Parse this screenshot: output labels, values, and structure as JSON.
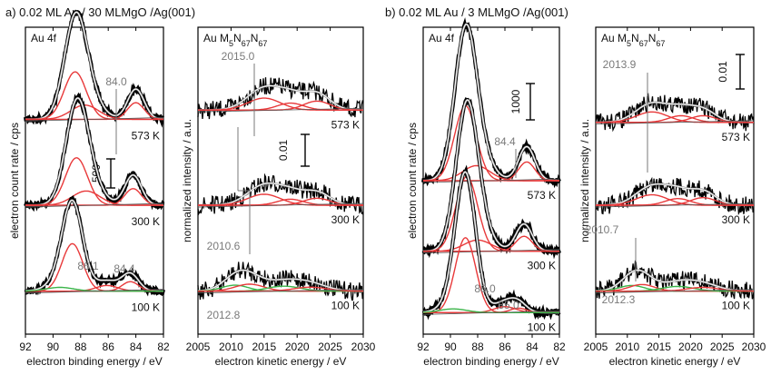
{
  "figure": {
    "left_title": "a) 0.02 ML Au / 30 MLMgO /Ag(001)",
    "right_title": "b) 0.02 ML Au / 3 MLMgO /Ag(001)"
  },
  "colors": {
    "raw": "#000000",
    "envelope": "#ffffff",
    "fit": "#8c8c8c",
    "component_red": "#e8393a",
    "component_green": "#3bb54a",
    "background_line": "#555555",
    "annotation": "#7a7a7a"
  },
  "chart_data": [
    {
      "id": "a-4f",
      "type": "line",
      "panel_label": "Au 4f",
      "xlabel": "electron binding energy / eV",
      "ylabel": "electron count rate / cps",
      "xlim": [
        92,
        82
      ],
      "xticks": [
        92,
        90,
        88,
        86,
        84,
        82
      ],
      "scale_bar": "500",
      "spectra": [
        {
          "temperature": "573 K",
          "peaks": [
            {
              "center": 88.4,
              "height": 1.0,
              "width": 0.8,
              "color": "red"
            },
            {
              "center": 84.0,
              "height": 0.35,
              "width": 0.6,
              "color": "red"
            },
            {
              "center": 87.7,
              "height": 0.3,
              "width": 1.0,
              "color": "red"
            }
          ]
        },
        {
          "temperature": "300 K",
          "peaks": [
            {
              "center": 88.3,
              "height": 1.0,
              "width": 0.8,
              "color": "red"
            },
            {
              "center": 84.2,
              "height": 0.35,
              "width": 0.6,
              "color": "red"
            },
            {
              "center": 87.6,
              "height": 0.3,
              "width": 1.0,
              "color": "red"
            }
          ]
        },
        {
          "temperature": "100 K",
          "peaks": [
            {
              "center": 88.6,
              "height": 1.0,
              "width": 0.75,
              "color": "red"
            },
            {
              "center": 84.4,
              "height": 0.2,
              "width": 0.6,
              "color": "red"
            },
            {
              "center": 86.1,
              "height": 0.12,
              "width": 0.8,
              "color": "red"
            },
            {
              "center": 89.5,
              "height": 0.08,
              "width": 1.0,
              "color": "green"
            }
          ]
        }
      ],
      "annotations": [
        "84.0",
        "86.1",
        "84.4"
      ]
    },
    {
      "id": "a-mnn",
      "type": "line",
      "panel_label": "Au M5N67N67",
      "xlabel": "electron kinetic energy / eV",
      "ylabel": "normalized intensity / a.u.",
      "xlim": [
        2005,
        2030
      ],
      "xticks": [
        2005,
        2010,
        2015,
        2020,
        2025,
        2030
      ],
      "scale_bar": "0.01",
      "spectra": [
        {
          "temperature": "573 K",
          "peaks": [
            {
              "center": 2015.0,
              "height": 0.6,
              "width": 2.5,
              "color": "red"
            },
            {
              "center": 2019.0,
              "height": 0.35,
              "width": 2.0,
              "color": "red"
            },
            {
              "center": 2023.0,
              "height": 0.45,
              "width": 2.0,
              "color": "red"
            }
          ]
        },
        {
          "temperature": "300 K",
          "peaks": [
            {
              "center": 2015.0,
              "height": 0.55,
              "width": 2.5,
              "color": "red"
            },
            {
              "center": 2019.0,
              "height": 0.3,
              "width": 2.0,
              "color": "red"
            },
            {
              "center": 2023.0,
              "height": 0.35,
              "width": 2.0,
              "color": "red"
            }
          ]
        },
        {
          "temperature": "100 K",
          "peaks": [
            {
              "center": 2010.6,
              "height": 0.3,
              "width": 2.0,
              "color": "green"
            },
            {
              "center": 2012.8,
              "height": 0.35,
              "width": 2.2,
              "color": "red"
            },
            {
              "center": 2018.0,
              "height": 0.25,
              "width": 2.5,
              "color": "green"
            },
            {
              "center": 2022.0,
              "height": 0.2,
              "width": 2.5,
              "color": "red"
            }
          ]
        }
      ],
      "annotations": [
        "2015.0",
        "2010.6",
        "2012.8"
      ]
    },
    {
      "id": "b-4f",
      "type": "line",
      "panel_label": "Au 4f",
      "xlabel": "electron binding energy / eV",
      "ylabel": "electron count rate / cps",
      "xlim": [
        92,
        82
      ],
      "xticks": [
        92,
        90,
        88,
        86,
        84,
        82
      ],
      "scale_bar": "1000",
      "spectra": [
        {
          "temperature": "573 K",
          "peaks": [
            {
              "center": 88.9,
              "height": 1.0,
              "width": 0.8,
              "color": "red"
            },
            {
              "center": 84.4,
              "height": 0.25,
              "width": 0.6,
              "color": "red"
            },
            {
              "center": 88.1,
              "height": 0.2,
              "width": 1.0,
              "color": "red"
            }
          ]
        },
        {
          "temperature": "300 K",
          "peaks": [
            {
              "center": 88.8,
              "height": 1.0,
              "width": 0.8,
              "color": "red"
            },
            {
              "center": 84.6,
              "height": 0.2,
              "width": 0.6,
              "color": "red"
            },
            {
              "center": 88.0,
              "height": 0.15,
              "width": 1.0,
              "color": "red"
            }
          ]
        },
        {
          "temperature": "100 K",
          "peaks": [
            {
              "center": 88.9,
              "height": 1.0,
              "width": 0.75,
              "color": "red"
            },
            {
              "center": 86.0,
              "height": 0.08,
              "width": 0.8,
              "color": "red"
            },
            {
              "center": 85.0,
              "height": 0.06,
              "width": 0.6,
              "color": "red"
            },
            {
              "center": 89.8,
              "height": 0.05,
              "width": 1.0,
              "color": "green"
            }
          ]
        }
      ],
      "annotations": [
        "84.4",
        "86.0",
        "85.0"
      ]
    },
    {
      "id": "b-mnn",
      "type": "line",
      "panel_label": "Au M5N67N67",
      "xlabel": "electron kinetic energy / eV",
      "ylabel": "normalized intensity / a.u.",
      "xlim": [
        2005,
        2030
      ],
      "xticks": [
        2005,
        2010,
        2015,
        2020,
        2025,
        2030
      ],
      "scale_bar": "0.01",
      "spectra": [
        {
          "temperature": "573 K",
          "peaks": [
            {
              "center": 2013.9,
              "height": 0.55,
              "width": 2.5,
              "color": "red"
            },
            {
              "center": 2018.5,
              "height": 0.35,
              "width": 2.0,
              "color": "red"
            },
            {
              "center": 2022.0,
              "height": 0.35,
              "width": 2.0,
              "color": "red"
            }
          ]
        },
        {
          "temperature": "300 K",
          "peaks": [
            {
              "center": 2013.9,
              "height": 0.55,
              "width": 2.5,
              "color": "red"
            },
            {
              "center": 2018.0,
              "height": 0.35,
              "width": 2.0,
              "color": "red"
            },
            {
              "center": 2022.0,
              "height": 0.4,
              "width": 2.0,
              "color": "red"
            }
          ]
        },
        {
          "temperature": "100 K",
          "peaks": [
            {
              "center": 2010.7,
              "height": 0.3,
              "width": 2.0,
              "color": "green"
            },
            {
              "center": 2012.3,
              "height": 0.35,
              "width": 2.0,
              "color": "red"
            },
            {
              "center": 2018.0,
              "height": 0.25,
              "width": 2.5,
              "color": "green"
            },
            {
              "center": 2022.0,
              "height": 0.2,
              "width": 2.5,
              "color": "red"
            }
          ]
        }
      ],
      "annotations": [
        "2013.9",
        "2010.7",
        "2012.3"
      ]
    }
  ]
}
